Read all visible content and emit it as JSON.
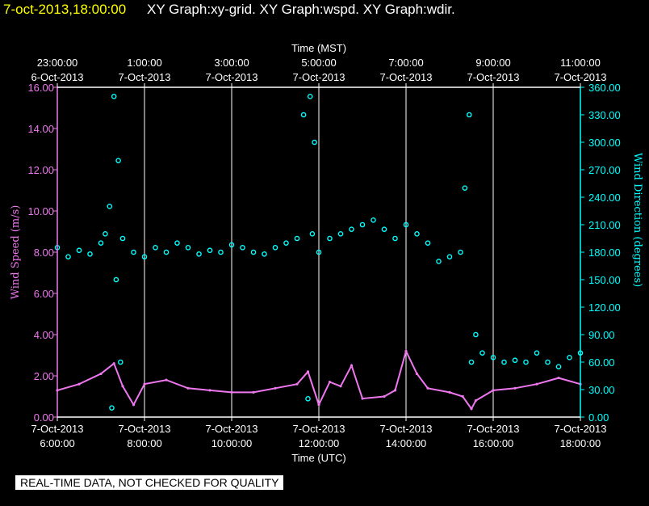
{
  "header": {
    "timestamp": "7-oct-2013,18:00:00",
    "graphs": "XY Graph:xy-grid.  XY Graph:wspd.  XY Graph:wdir."
  },
  "disclaimer": "REAL-TIME DATA, NOT CHECKED FOR QUALITY",
  "colors": {
    "background": "#000000",
    "axis": "#ffffff",
    "wind_speed": "#ee77ee",
    "wind_direction": "#00ffff",
    "timestamp": "#ffff00"
  },
  "chart_data": {
    "type": "scatter",
    "grid": true,
    "x_bottom": {
      "label": "Time (UTC)",
      "range_hours_utc": [
        6,
        18
      ],
      "ticks": [
        {
          "date": "7-Oct-2013",
          "time": "6:00:00"
        },
        {
          "date": "7-Oct-2013",
          "time": "8:00:00"
        },
        {
          "date": "7-Oct-2013",
          "time": "10:00:00"
        },
        {
          "date": "7-Oct-2013",
          "time": "12:00:00"
        },
        {
          "date": "7-Oct-2013",
          "time": "14:00:00"
        },
        {
          "date": "7-Oct-2013",
          "time": "16:00:00"
        },
        {
          "date": "7-Oct-2013",
          "time": "18:00:00"
        }
      ]
    },
    "x_top": {
      "label": "Time (MST)",
      "ticks": [
        {
          "time": "23:00:00",
          "date": "6-Oct-2013"
        },
        {
          "time": "1:00:00",
          "date": "7-Oct-2013"
        },
        {
          "time": "3:00:00",
          "date": "7-Oct-2013"
        },
        {
          "time": "5:00:00",
          "date": "7-Oct-2013"
        },
        {
          "time": "7:00:00",
          "date": "7-Oct-2013"
        },
        {
          "time": "9:00:00",
          "date": "7-Oct-2013"
        },
        {
          "time": "11:00:00",
          "date": "7-Oct-2013"
        }
      ]
    },
    "y_left": {
      "label": "Wind Speed (m/s)",
      "range": [
        0,
        16
      ],
      "ticks": [
        "0.00",
        "2.00",
        "4.00",
        "6.00",
        "8.00",
        "10.00",
        "12.00",
        "14.00",
        "16.00"
      ]
    },
    "y_right": {
      "label": "Wind Direction (degrees)",
      "range": [
        0,
        360
      ],
      "ticks": [
        "0.00",
        "30.00",
        "60.00",
        "90.00",
        "120.00",
        "150.00",
        "180.00",
        "210.00",
        "240.00",
        "270.00",
        "300.00",
        "330.00",
        "360.00"
      ]
    },
    "series": [
      {
        "key": "wind_speed",
        "axis": "left",
        "style": "line",
        "x_hours_utc": [
          6.0,
          6.5,
          7.0,
          7.3,
          7.5,
          7.75,
          8.0,
          8.5,
          9.0,
          9.5,
          10.0,
          10.5,
          11.0,
          11.5,
          11.75,
          12.0,
          12.25,
          12.5,
          12.75,
          13.0,
          13.5,
          13.75,
          14.0,
          14.25,
          14.5,
          15.0,
          15.3,
          15.5,
          15.6,
          16.0,
          16.5,
          17.0,
          17.5,
          18.0
        ],
        "values": [
          1.3,
          1.6,
          2.1,
          2.6,
          1.5,
          0.6,
          1.6,
          1.8,
          1.4,
          1.3,
          1.2,
          1.2,
          1.4,
          1.6,
          2.2,
          0.6,
          1.7,
          1.5,
          2.5,
          0.9,
          1.0,
          1.3,
          3.2,
          2.1,
          1.4,
          1.2,
          1.0,
          0.4,
          0.8,
          1.3,
          1.4,
          1.6,
          1.9,
          1.6
        ]
      },
      {
        "key": "wind_direction",
        "axis": "right",
        "style": "points",
        "x_hours_utc": [
          6.0,
          6.25,
          6.5,
          6.75,
          7.0,
          7.1,
          7.2,
          7.25,
          7.3,
          7.35,
          7.4,
          7.45,
          7.5,
          7.75,
          8.0,
          8.25,
          8.5,
          8.75,
          9.0,
          9.25,
          9.5,
          9.75,
          10.0,
          10.25,
          10.5,
          10.75,
          11.0,
          11.25,
          11.5,
          11.65,
          11.75,
          11.8,
          11.85,
          11.9,
          12.0,
          12.25,
          12.5,
          12.75,
          13.0,
          13.25,
          13.5,
          13.75,
          14.0,
          14.25,
          14.5,
          14.75,
          15.0,
          15.25,
          15.35,
          15.45,
          15.5,
          15.6,
          15.75,
          16.0,
          16.25,
          16.5,
          16.75,
          17.0,
          17.25,
          17.5,
          17.75,
          18.0
        ],
        "values": [
          185,
          175,
          182,
          178,
          190,
          200,
          230,
          10,
          350,
          150,
          280,
          60,
          195,
          180,
          175,
          185,
          180,
          190,
          185,
          178,
          182,
          180,
          188,
          185,
          180,
          178,
          185,
          190,
          195,
          330,
          20,
          350,
          200,
          300,
          180,
          195,
          200,
          205,
          210,
          215,
          205,
          195,
          210,
          200,
          190,
          170,
          175,
          180,
          250,
          330,
          60,
          90,
          70,
          65,
          60,
          62,
          60,
          70,
          60,
          55,
          65,
          70
        ]
      }
    ]
  }
}
